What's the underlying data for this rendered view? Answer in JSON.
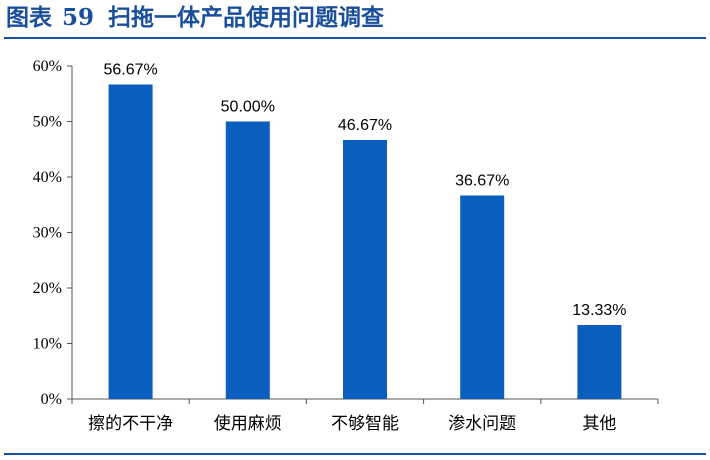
{
  "figure": {
    "label": "图表",
    "number": "59",
    "title": "扫拖一体产品使用问题调查"
  },
  "colors": {
    "bar": "#0a5ebd",
    "title": "#1a4f9c",
    "axis": "#555555"
  },
  "chart_data": {
    "type": "bar",
    "title": "扫拖一体产品使用问题调查",
    "categories": [
      "擦的不干净",
      "使用麻烦",
      "不够智能",
      "渗水问题",
      "其他"
    ],
    "values": [
      56.67,
      50.0,
      46.67,
      36.67,
      13.33
    ],
    "data_labels": [
      "56.67%",
      "50.00%",
      "46.67%",
      "36.67%",
      "13.33%"
    ],
    "ylim": [
      0,
      60
    ],
    "yticks": [
      0,
      10,
      20,
      30,
      40,
      50,
      60
    ],
    "ytick_labels": [
      "0%",
      "10%",
      "20%",
      "30%",
      "40%",
      "50%",
      "60%"
    ],
    "xlabel": "",
    "ylabel": "",
    "grid": false,
    "legend": "none"
  }
}
